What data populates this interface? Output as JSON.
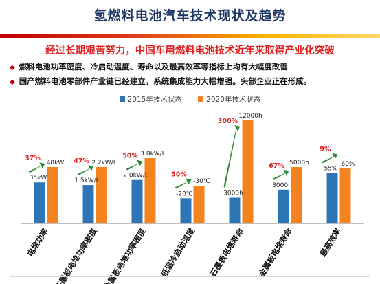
{
  "slide": {
    "title": "氢燃料电池汽车技术现状及趋势",
    "headline": "经过长期艰苦努力，中国车用燃料电池技术近年来取得产业化突破",
    "bullets": [
      "燃料电池功率密度、冷启动温度、寿命以及最高效率等指标上均有大幅度改善",
      "国产燃料电池零部件产业链已经建立，系统集成能力大幅增强。头部企业正在形成。"
    ]
  },
  "colors": {
    "series_2015": "#2e75b6",
    "series_2020": "#f4831f",
    "growth_label": "#e01f1f",
    "arrow": "#2e8b3a",
    "title": "#1f3864"
  },
  "icons": [
    "diamond-bullet-icon",
    "growth-arrow-icon"
  ],
  "chart_data": {
    "type": "bar",
    "categories": [
      "电堆功率",
      "石墨板电堆功率密度",
      "金属板电堆功率密度",
      "低温冷启动温度",
      "石墨板电堆寿命",
      "金属板电堆寿命",
      "最高效率"
    ],
    "series": [
      {
        "name": "2015年技术状态",
        "values": [
          35,
          1.5,
          2.0,
          -20,
          3000,
          3000,
          55
        ],
        "labels": [
          "35kW",
          "1.5kW/L",
          "2.0kW/L",
          "-20℃",
          "3000h",
          "3000h",
          "55%"
        ]
      },
      {
        "name": "2020年技术状态",
        "values": [
          48,
          2.2,
          3.0,
          -30,
          12000,
          5000,
          60
        ],
        "labels": [
          "48kW",
          "2.2kW/L",
          "3.0kW/L",
          "-30℃",
          "12000h",
          "5000h",
          "60%"
        ]
      }
    ],
    "growth": [
      "37%",
      "47%",
      "50%",
      "50%",
      "300%",
      "67%",
      "9%"
    ],
    "legend_position": "top-center",
    "grid": false
  }
}
